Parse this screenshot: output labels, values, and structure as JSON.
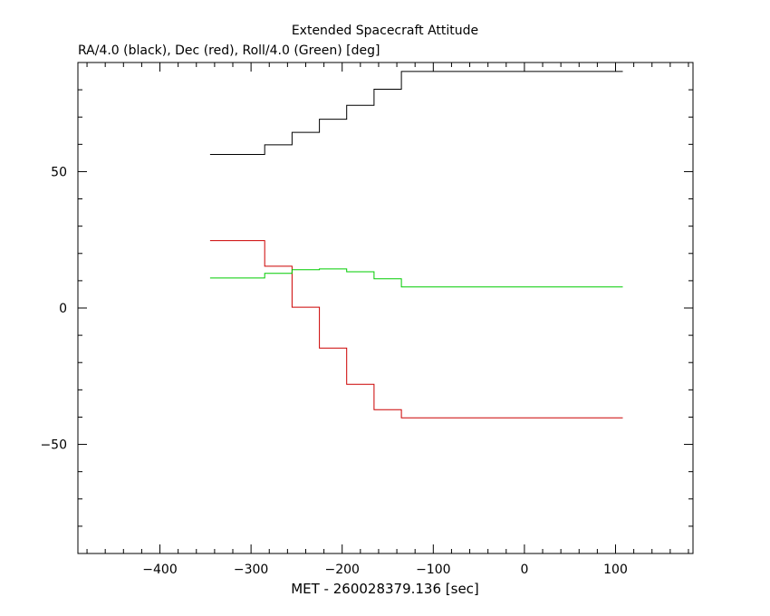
{
  "chart_data": {
    "type": "line",
    "title": "Extended Spacecraft Attitude",
    "subtitle": "RA/4.0 (black), Dec (red), Roll/4.0 (Green) [deg]",
    "xlabel": "MET - 260028379.136 [sec]",
    "ylabel": "",
    "xlim": [
      -490,
      185
    ],
    "ylim": [
      -90,
      90
    ],
    "x_ticks": [
      -400,
      -300,
      -200,
      -100,
      0,
      100
    ],
    "y_ticks": [
      -50,
      0,
      50
    ],
    "grid": false,
    "legend": "none",
    "series": [
      {
        "color": "#000000",
        "step": true,
        "x": [
          -345,
          -285,
          -255,
          -225,
          -195,
          -165,
          -135,
          108
        ],
        "y": [
          56.3,
          59.8,
          64.4,
          69.2,
          74.3,
          80.2,
          86.7,
          86.7
        ]
      },
      {
        "color": "#cc0000",
        "step": true,
        "x": [
          -345,
          -285,
          -255,
          -225,
          -195,
          -165,
          -135,
          108
        ],
        "y": [
          24.7,
          15.3,
          0.3,
          -14.7,
          -28.0,
          -37.3,
          -40.3,
          -40.3
        ]
      },
      {
        "color": "#00cc00",
        "step": true,
        "x": [
          -345,
          -285,
          -255,
          -225,
          -195,
          -165,
          -135,
          108
        ],
        "y": [
          11.0,
          12.7,
          14.0,
          14.3,
          13.3,
          10.7,
          7.7,
          7.7
        ]
      }
    ]
  }
}
